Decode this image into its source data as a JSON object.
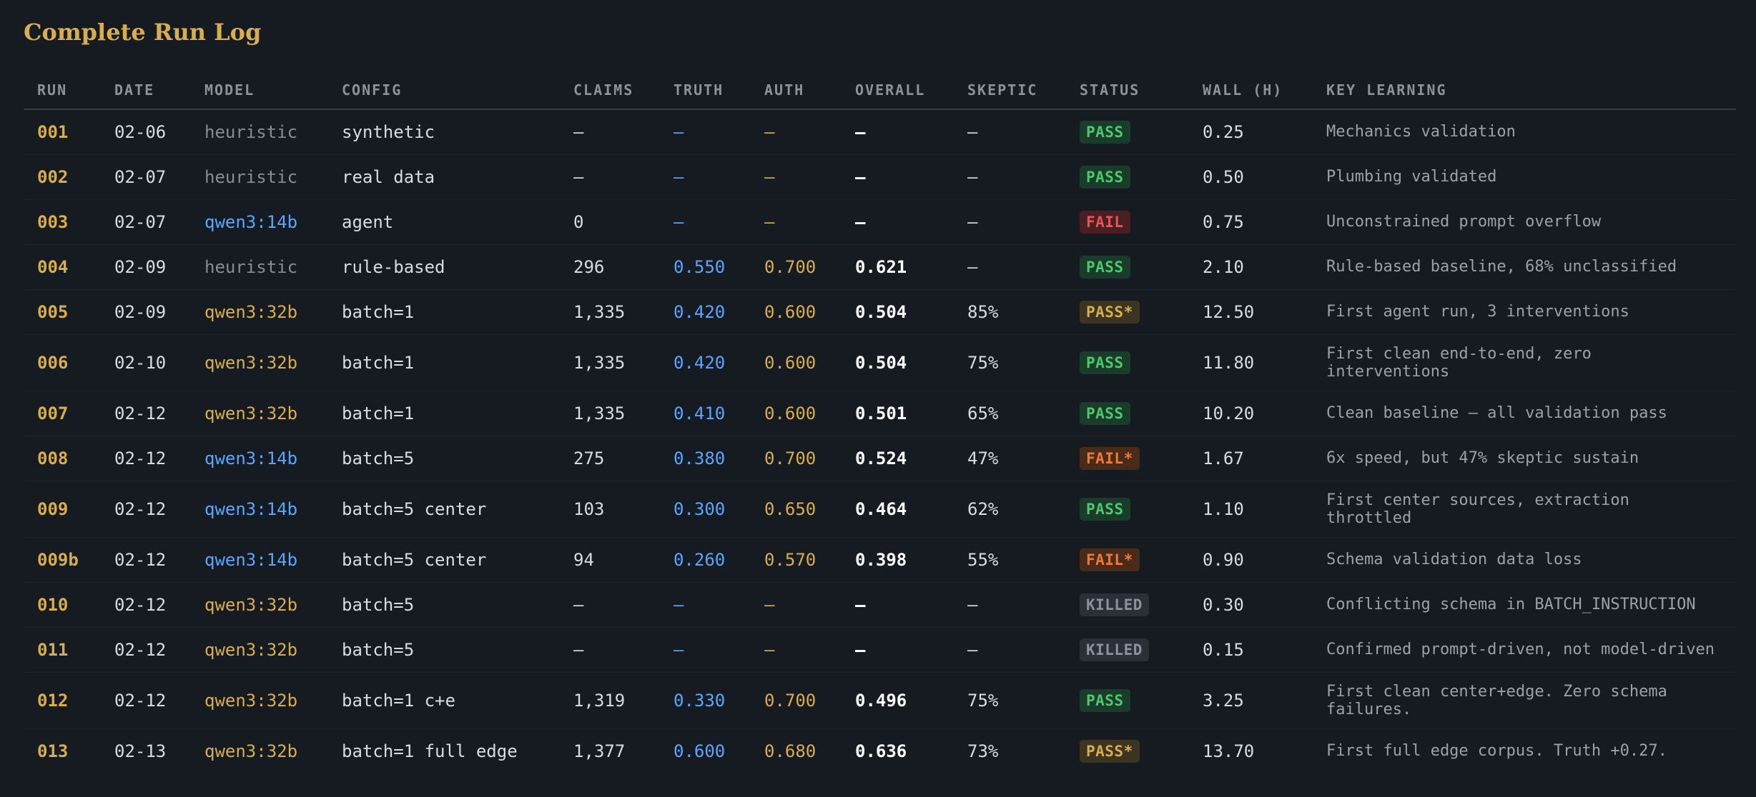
{
  "title": "Complete Run Log",
  "colors": {
    "accent_gold": "#d8ad4c",
    "accent_blue": "#58a6ff",
    "pass_green": "#4cc96a",
    "fail_red": "#ef5350",
    "fail_star_orange": "#f07a30",
    "killed_gray": "#8b929b"
  },
  "columns": [
    "RUN",
    "DATE",
    "MODEL",
    "CONFIG",
    "CLAIMS",
    "TRUTH",
    "AUTH",
    "OVERALL",
    "SKEPTIC",
    "STATUS",
    "WALL (H)",
    "KEY LEARNING"
  ],
  "rows": [
    {
      "run": "001",
      "date": "02-06",
      "model": "heuristic",
      "config": "synthetic",
      "claims": "—",
      "truth": "—",
      "auth": "—",
      "overall": "—",
      "skeptic": "—",
      "status": "PASS",
      "wall": "0.25",
      "learning": "Mechanics validation"
    },
    {
      "run": "002",
      "date": "02-07",
      "model": "heuristic",
      "config": "real data",
      "claims": "—",
      "truth": "—",
      "auth": "—",
      "overall": "—",
      "skeptic": "—",
      "status": "PASS",
      "wall": "0.50",
      "learning": "Plumbing validated"
    },
    {
      "run": "003",
      "date": "02-07",
      "model": "qwen3:14b",
      "config": "agent",
      "claims": "0",
      "truth": "—",
      "auth": "—",
      "overall": "—",
      "skeptic": "—",
      "status": "FAIL",
      "wall": "0.75",
      "learning": "Unconstrained prompt overflow"
    },
    {
      "run": "004",
      "date": "02-09",
      "model": "heuristic",
      "config": "rule-based",
      "claims": "296",
      "truth": "0.550",
      "auth": "0.700",
      "overall": "0.621",
      "skeptic": "—",
      "status": "PASS",
      "wall": "2.10",
      "learning": "Rule-based baseline, 68% unclassified"
    },
    {
      "run": "005",
      "date": "02-09",
      "model": "qwen3:32b",
      "config": "batch=1",
      "claims": "1,335",
      "truth": "0.420",
      "auth": "0.600",
      "overall": "0.504",
      "skeptic": "85%",
      "status": "PASS*",
      "wall": "12.50",
      "learning": "First agent run, 3 interventions"
    },
    {
      "run": "006",
      "date": "02-10",
      "model": "qwen3:32b",
      "config": "batch=1",
      "claims": "1,335",
      "truth": "0.420",
      "auth": "0.600",
      "overall": "0.504",
      "skeptic": "75%",
      "status": "PASS",
      "wall": "11.80",
      "learning": "First clean end-to-end, zero interventions"
    },
    {
      "run": "007",
      "date": "02-12",
      "model": "qwen3:32b",
      "config": "batch=1",
      "claims": "1,335",
      "truth": "0.410",
      "auth": "0.600",
      "overall": "0.501",
      "skeptic": "65%",
      "status": "PASS",
      "wall": "10.20",
      "learning": "Clean baseline — all validation pass"
    },
    {
      "run": "008",
      "date": "02-12",
      "model": "qwen3:14b",
      "config": "batch=5",
      "claims": "275",
      "truth": "0.380",
      "auth": "0.700",
      "overall": "0.524",
      "skeptic": "47%",
      "status": "FAIL*",
      "wall": "1.67",
      "learning": "6x speed, but 47% skeptic sustain"
    },
    {
      "run": "009",
      "date": "02-12",
      "model": "qwen3:14b",
      "config": "batch=5 center",
      "claims": "103",
      "truth": "0.300",
      "auth": "0.650",
      "overall": "0.464",
      "skeptic": "62%",
      "status": "PASS",
      "wall": "1.10",
      "learning": "First center sources, extraction throttled"
    },
    {
      "run": "009b",
      "date": "02-12",
      "model": "qwen3:14b",
      "config": "batch=5 center",
      "claims": "94",
      "truth": "0.260",
      "auth": "0.570",
      "overall": "0.398",
      "skeptic": "55%",
      "status": "FAIL*",
      "wall": "0.90",
      "learning": "Schema validation data loss"
    },
    {
      "run": "010",
      "date": "02-12",
      "model": "qwen3:32b",
      "config": "batch=5",
      "claims": "—",
      "truth": "—",
      "auth": "—",
      "overall": "—",
      "skeptic": "—",
      "status": "KILLED",
      "wall": "0.30",
      "learning": "Conflicting schema in BATCH_INSTRUCTION"
    },
    {
      "run": "011",
      "date": "02-12",
      "model": "qwen3:32b",
      "config": "batch=5",
      "claims": "—",
      "truth": "—",
      "auth": "—",
      "overall": "—",
      "skeptic": "—",
      "status": "KILLED",
      "wall": "0.15",
      "learning": "Confirmed prompt-driven, not model-driven"
    },
    {
      "run": "012",
      "date": "02-12",
      "model": "qwen3:32b",
      "config": "batch=1 c+e",
      "claims": "1,319",
      "truth": "0.330",
      "auth": "0.700",
      "overall": "0.496",
      "skeptic": "75%",
      "status": "PASS",
      "wall": "3.25",
      "learning": "First clean center+edge. Zero schema failures."
    },
    {
      "run": "013",
      "date": "02-13",
      "model": "qwen3:32b",
      "config": "batch=1 full edge",
      "claims": "1,377",
      "truth": "0.600",
      "auth": "0.680",
      "overall": "0.636",
      "skeptic": "73%",
      "status": "PASS*",
      "wall": "13.70",
      "learning": "First full edge corpus. Truth +0.27."
    }
  ]
}
